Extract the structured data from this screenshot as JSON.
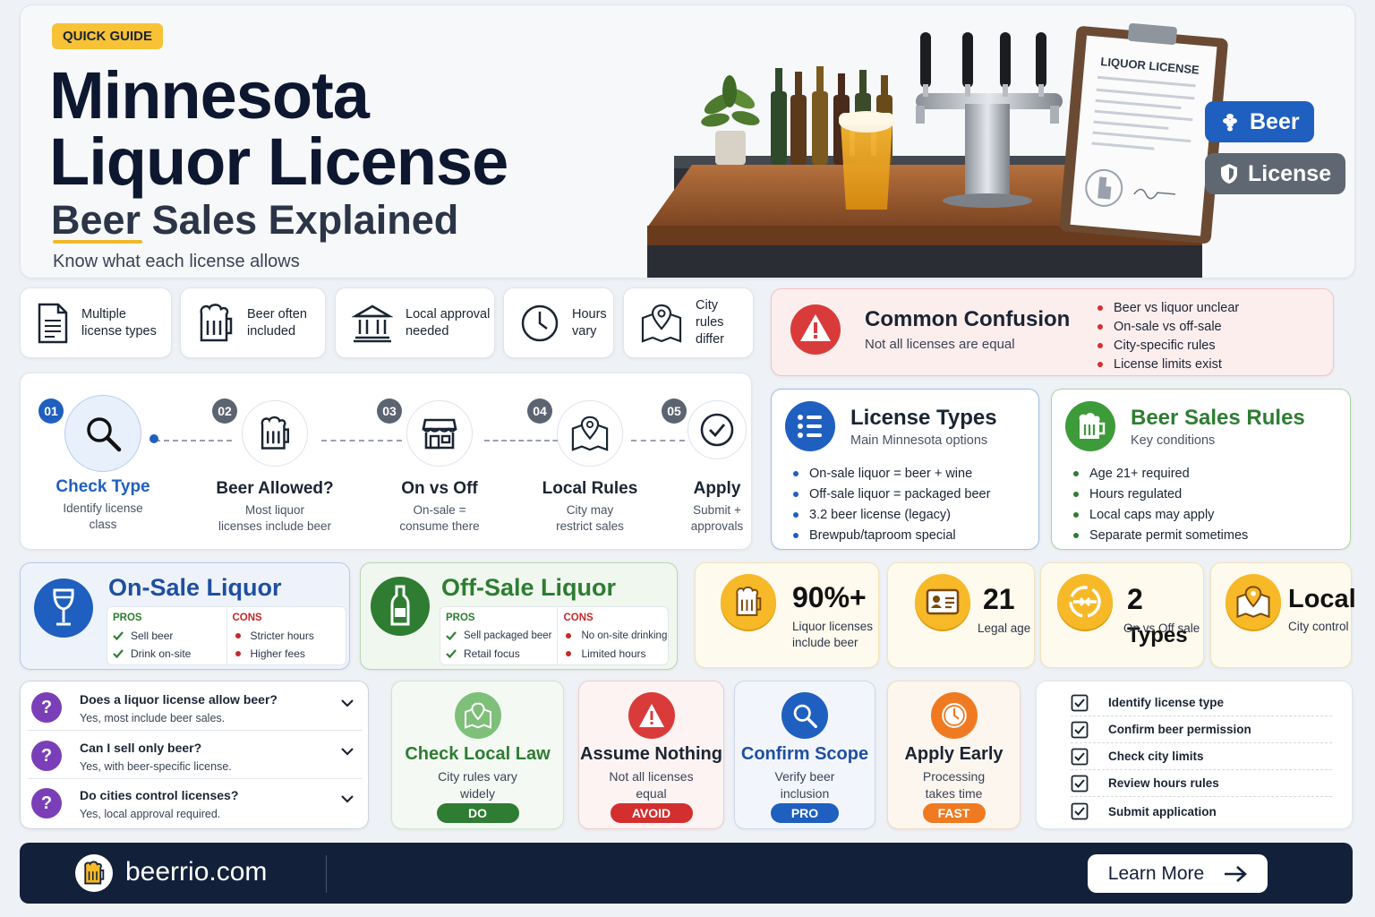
{
  "hero": {
    "tag": "QUICK GUIDE",
    "title_line1": "Minnesota",
    "title_line2": "Liquor License",
    "subtitle": "Beer Sales Explained",
    "tagline": "Know what each license allows",
    "clipboard_label": "LIQUOR LICENSE",
    "pill_beer": "Beer",
    "pill_license": "License"
  },
  "facts": [
    {
      "text": "Multiple license types",
      "icon": "document-icon"
    },
    {
      "text": "Beer often included",
      "icon": "beer-mug-icon"
    },
    {
      "text": "Local approval needed",
      "icon": "government-building-icon"
    },
    {
      "text": "Hours vary",
      "icon": "clock-icon"
    },
    {
      "text": "City rules differ",
      "icon": "map-pin-icon"
    }
  ],
  "confusion": {
    "title": "Common Confusion",
    "subtitle": "Not all licenses are equal",
    "points": [
      "Beer vs liquor unclear",
      "On-sale vs off-sale",
      "City-specific rules",
      "License limits exist"
    ]
  },
  "steps": [
    {
      "num": "01",
      "title": "Check Type",
      "desc1": "Identify license",
      "desc2": "class"
    },
    {
      "num": "02",
      "title": "Beer Allowed?",
      "desc1": "Most liquor",
      "desc2": "licenses include beer"
    },
    {
      "num": "03",
      "title": "On vs Off",
      "desc1": "On-sale =",
      "desc2": "consume there"
    },
    {
      "num": "04",
      "title": "Local Rules",
      "desc1": "City may",
      "desc2": "restrict sales"
    },
    {
      "num": "05",
      "title": "Apply",
      "desc1": "Submit +",
      "desc2": "approvals"
    }
  ],
  "license_types": {
    "title": "License Types",
    "subtitle": "Main Minnesota options",
    "items": [
      "On-sale liquor = beer + wine",
      "Off-sale liquor = packaged beer",
      "3.2 beer license (legacy)",
      "Brewpub/taproom special"
    ]
  },
  "beer_rules": {
    "title": "Beer Sales Rules",
    "subtitle": "Key conditions",
    "items": [
      "Age 21+ required",
      "Hours regulated",
      "Local caps may apply",
      "Separate permit sometimes"
    ]
  },
  "on_sale": {
    "title": "On-Sale Liquor",
    "pros_label": "PROS",
    "cons_label": "CONS",
    "pros": [
      "Sell beer",
      "Drink on-site"
    ],
    "cons": [
      "Stricter hours",
      "Higher fees"
    ]
  },
  "off_sale": {
    "title": "Off-Sale Liquor",
    "pros_label": "PROS",
    "cons_label": "CONS",
    "pros": [
      "Sell packaged beer",
      "Retail focus"
    ],
    "cons": [
      "No on-site drinking",
      "Limited hours"
    ]
  },
  "stats": [
    {
      "value": "90%+",
      "label1": "Liquor licenses",
      "label2": "include beer"
    },
    {
      "value": "21",
      "label1": "Legal age",
      "label2": ""
    },
    {
      "value": "2",
      "value_suffix": "Types",
      "label1": "On vs Off sale",
      "label2": ""
    },
    {
      "value": "Local",
      "label1": "City control",
      "label2": ""
    }
  ],
  "faq": [
    {
      "q": "Does a liquor license allow beer?",
      "a": "Yes, most include beer sales."
    },
    {
      "q": "Can I sell only beer?",
      "a": "Yes, with beer-specific license."
    },
    {
      "q": "Do cities control licenses?",
      "a": "Yes, local approval required."
    }
  ],
  "tips": [
    {
      "title": "Check Local Law",
      "desc1": "City rules vary",
      "desc2": "widely",
      "badge": "DO",
      "color": "#2e7d32"
    },
    {
      "title": "Assume Nothing",
      "desc1": "Not all licenses",
      "desc2": "equal",
      "badge": "AVOID",
      "color": "#d32f2f"
    },
    {
      "title": "Confirm Scope",
      "desc1": "Verify beer",
      "desc2": "inclusion",
      "badge": "PRO",
      "color": "#1f5fbf"
    },
    {
      "title": "Apply Early",
      "desc1": "Processing",
      "desc2": "takes time",
      "badge": "FAST",
      "color": "#ef7a22"
    }
  ],
  "checklist": [
    "Identify license type",
    "Confirm beer permission",
    "Check city limits",
    "Review hours rules",
    "Submit application"
  ],
  "footer": {
    "site": "beerrio.com",
    "cta": "Learn More"
  }
}
